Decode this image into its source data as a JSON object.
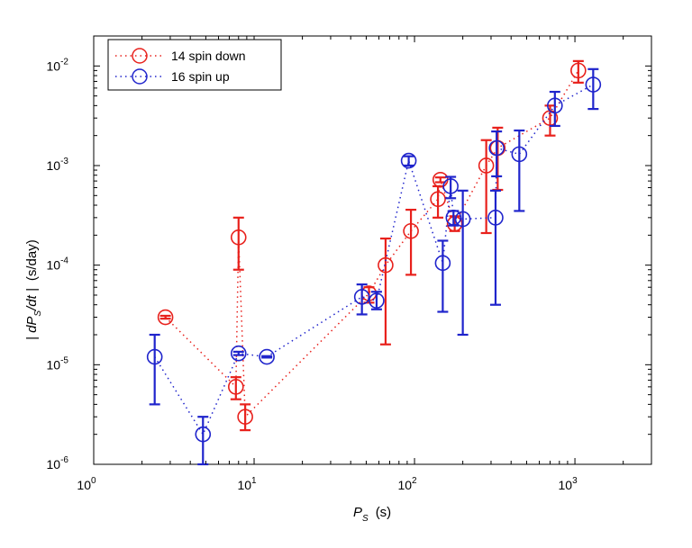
{
  "chart_data": {
    "type": "scatter",
    "x_scale": "log",
    "y_scale": "log",
    "xlim": [
      1,
      3000
    ],
    "ylim": [
      1e-06,
      0.02
    ],
    "x_ticks": [
      1,
      10,
      100,
      1000
    ],
    "y_ticks": [
      1e-06,
      1e-05,
      0.0001,
      0.001,
      0.01
    ],
    "x_tick_labels": [
      {
        "base": "10",
        "exp": "0"
      },
      {
        "base": "10",
        "exp": "1"
      },
      {
        "base": "10",
        "exp": "2"
      },
      {
        "base": "10",
        "exp": "3"
      }
    ],
    "y_tick_labels": [
      {
        "base": "10",
        "exp": "-6"
      },
      {
        "base": "10",
        "exp": "-5"
      },
      {
        "base": "10",
        "exp": "-4"
      },
      {
        "base": "10",
        "exp": "-3"
      },
      {
        "base": "10",
        "exp": "-2"
      }
    ],
    "xlabel": {
      "main": "P",
      "sub": "S",
      "unit": "(s)"
    },
    "ylabel": {
      "pre": "| dP",
      "sub": "S",
      "post": "/dt |",
      "unit": "(s/day)"
    },
    "legend_position": "top-left",
    "grid": false,
    "series": [
      {
        "name": "14 spin down",
        "color": "#e8211c",
        "points": [
          {
            "x": 2.8,
            "y": 3e-05,
            "lo": 2.9e-05,
            "hi": 3.1e-05
          },
          {
            "x": 7.7,
            "y": 6e-06,
            "lo": 4.5e-06,
            "hi": 7.5e-06
          },
          {
            "x": 8.0,
            "y": 0.00019,
            "lo": 9e-05,
            "hi": 0.0003
          },
          {
            "x": 8.8,
            "y": 3e-06,
            "lo": 2.2e-06,
            "hi": 4e-06
          },
          {
            "x": 52,
            "y": 5.2e-05,
            "lo": 4.2e-05,
            "hi": 6e-05
          },
          {
            "x": 66,
            "y": 0.0001,
            "lo": 1.6e-05,
            "hi": 0.000185
          },
          {
            "x": 95,
            "y": 0.00022,
            "lo": 8e-05,
            "hi": 0.00036
          },
          {
            "x": 140,
            "y": 0.00046,
            "lo": 0.0003,
            "hi": 0.00062
          },
          {
            "x": 145,
            "y": 0.00072,
            "lo": 0.00068,
            "hi": 0.00076
          },
          {
            "x": 178,
            "y": 0.00026,
            "lo": 0.00022,
            "hi": 0.00031
          },
          {
            "x": 280,
            "y": 0.001,
            "lo": 0.00021,
            "hi": 0.0018
          },
          {
            "x": 330,
            "y": 0.0015,
            "lo": 0.00057,
            "hi": 0.0024
          },
          {
            "x": 700,
            "y": 0.003,
            "lo": 0.002,
            "hi": 0.004
          },
          {
            "x": 1050,
            "y": 0.009,
            "lo": 0.0068,
            "hi": 0.0112
          }
        ]
      },
      {
        "name": "16 spin up",
        "color": "#1f24cc",
        "points": [
          {
            "x": 2.4,
            "y": 1.2e-05,
            "lo": 4e-06,
            "hi": 2e-05
          },
          {
            "x": 4.8,
            "y": 2e-06,
            "lo": 1e-06,
            "hi": 3e-06
          },
          {
            "x": 8.0,
            "y": 1.3e-05,
            "lo": 1.25e-05,
            "hi": 1.35e-05
          },
          {
            "x": 12,
            "y": 1.2e-05,
            "lo": 1.18e-05,
            "hi": 1.22e-05
          },
          {
            "x": 47,
            "y": 4.8e-05,
            "lo": 3.2e-05,
            "hi": 6.4e-05
          },
          {
            "x": 58,
            "y": 4.4e-05,
            "lo": 3.6e-05,
            "hi": 5.4e-05
          },
          {
            "x": 92,
            "y": 0.00112,
            "lo": 0.001,
            "hi": 0.00124
          },
          {
            "x": 150,
            "y": 0.000105,
            "lo": 3.4e-05,
            "hi": 0.000176
          },
          {
            "x": 168,
            "y": 0.00062,
            "lo": 0.00047,
            "hi": 0.00077
          },
          {
            "x": 175,
            "y": 0.0003,
            "lo": 0.00025,
            "hi": 0.00035
          },
          {
            "x": 200,
            "y": 0.00029,
            "lo": 2e-05,
            "hi": 0.00056
          },
          {
            "x": 320,
            "y": 0.0003,
            "lo": 4e-05,
            "hi": 0.00056
          },
          {
            "x": 325,
            "y": 0.0015,
            "lo": 0.00078,
            "hi": 0.0022
          },
          {
            "x": 450,
            "y": 0.0013,
            "lo": 0.00035,
            "hi": 0.00225
          },
          {
            "x": 750,
            "y": 0.004,
            "lo": 0.0025,
            "hi": 0.0055
          },
          {
            "x": 1300,
            "y": 0.0065,
            "lo": 0.0037,
            "hi": 0.0093
          }
        ]
      }
    ]
  }
}
